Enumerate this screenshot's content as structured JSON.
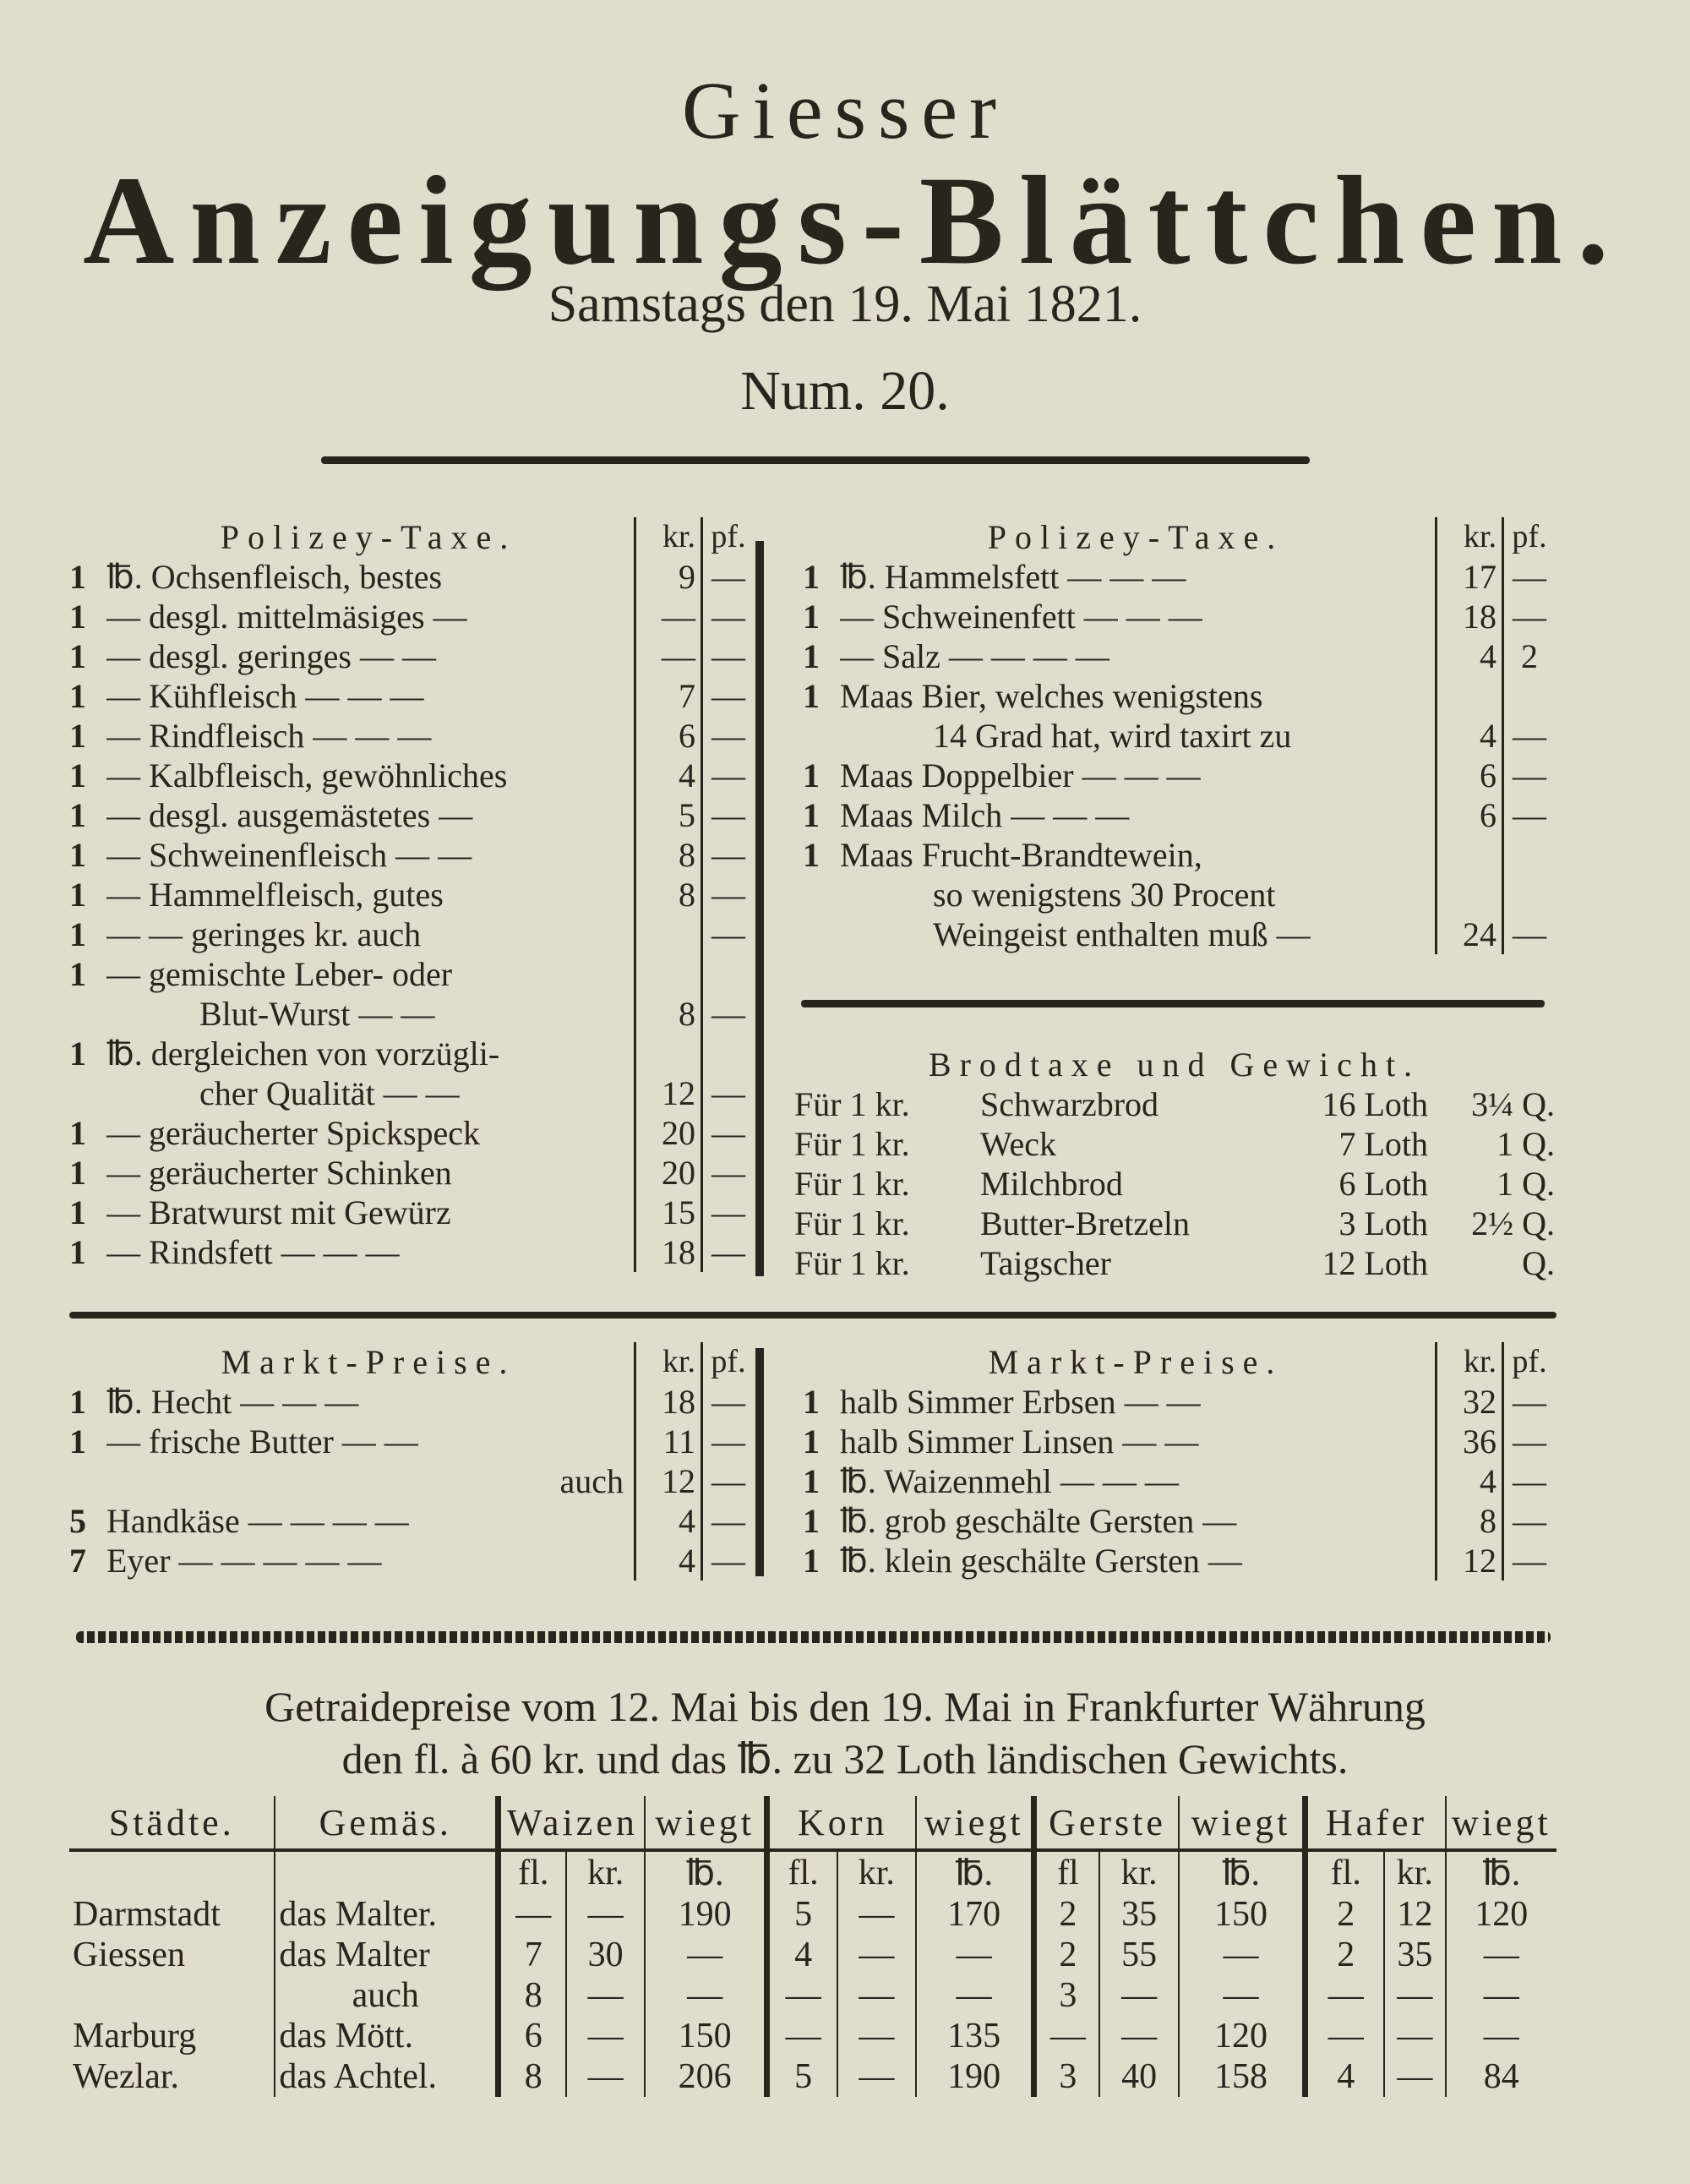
{
  "masthead": {
    "line1": "Giesser",
    "title": "Anzeigungs-Blättchen.",
    "date": "Samstags den 19. Mai 1821.",
    "number": "Num. 20."
  },
  "polizey_left": {
    "title": "Polizey-Taxe.",
    "kr": "kr.",
    "pf": "pf.",
    "rows": [
      {
        "qty": "1",
        "item": "℔. Ochsenfleisch, bestes",
        "kr": "9",
        "pf": "—"
      },
      {
        "qty": "1",
        "item": "— desgl. mittelmäsiges —",
        "kr": "—",
        "pf": "—"
      },
      {
        "qty": "1",
        "item": "— desgl. geringes — —",
        "kr": "—",
        "pf": "—"
      },
      {
        "qty": "1",
        "item": "— Kühfleisch — — —",
        "kr": "7",
        "pf": "—"
      },
      {
        "qty": "1",
        "item": "— Rindfleisch — — —",
        "kr": "6",
        "pf": "—"
      },
      {
        "qty": "1",
        "item": "— Kalbfleisch, gewöhnliches",
        "kr": "4",
        "pf": "—"
      },
      {
        "qty": "1",
        "item": "— desgl. ausgemästetes —",
        "kr": "5",
        "pf": "—"
      },
      {
        "qty": "1",
        "item": "— Schweinenfleisch — —",
        "kr": "8",
        "pf": "—"
      },
      {
        "qty": "1",
        "item": "— Hammelfleisch, gutes",
        "kr": "8",
        "pf": "—"
      },
      {
        "qty": "1",
        "item": "— — geringes kr. auch",
        "kr": "",
        "pf": "—"
      },
      {
        "qty": "1",
        "item": "— gemischte Leber- oder",
        "kr": "",
        "pf": ""
      },
      {
        "qty": "",
        "item": "Blut-Wurst — —",
        "kr": "8",
        "pf": "—",
        "cont": true
      },
      {
        "qty": "1",
        "item": "℔. dergleichen von vorzügli-",
        "kr": "",
        "pf": ""
      },
      {
        "qty": "",
        "item": "cher Qualität — —",
        "kr": "12",
        "pf": "—",
        "cont": true
      },
      {
        "qty": "1",
        "item": "— geräucherter Spickspeck",
        "kr": "20",
        "pf": "—"
      },
      {
        "qty": "1",
        "item": "— geräucherter Schinken",
        "kr": "20",
        "pf": "—"
      },
      {
        "qty": "1",
        "item": "— Bratwurst mit Gewürz",
        "kr": "15",
        "pf": "—"
      },
      {
        "qty": "1",
        "item": "— Rindsfett — — —",
        "kr": "18",
        "pf": "—"
      }
    ]
  },
  "polizey_right": {
    "title": "Polizey-Taxe.",
    "kr": "kr.",
    "pf": "pf.",
    "rows": [
      {
        "qty": "1",
        "item": "℔. Hammelsfett — — —",
        "kr": "17",
        "pf": "—"
      },
      {
        "qty": "1",
        "item": "— Schweinenfett — — —",
        "kr": "18",
        "pf": "—"
      },
      {
        "qty": "1",
        "item": "— Salz — — — —",
        "kr": "4",
        "pf": "2"
      },
      {
        "qty": "1",
        "item": "Maas Bier, welches wenigstens",
        "kr": "",
        "pf": ""
      },
      {
        "qty": "",
        "item": "14 Grad hat, wird taxirt zu",
        "kr": "4",
        "pf": "—",
        "cont": true
      },
      {
        "qty": "1",
        "item": "Maas Doppelbier — — —",
        "kr": "6",
        "pf": "—"
      },
      {
        "qty": "1",
        "item": "Maas Milch — — —",
        "kr": "6",
        "pf": "—"
      },
      {
        "qty": "1",
        "item": "Maas Frucht-Brandtewein,",
        "kr": "",
        "pf": ""
      },
      {
        "qty": "",
        "item": "so wenigstens 30 Procent",
        "kr": "",
        "pf": "",
        "cont": true
      },
      {
        "qty": "",
        "item": "Weingeist enthalten muß —",
        "kr": "24",
        "pf": "—",
        "cont": true
      }
    ]
  },
  "brodtaxe": {
    "title": "Brodtaxe und Gewicht.",
    "rows": [
      {
        "prefix": "Für 1 kr.",
        "item": "Schwarzbrod",
        "loth": "16 Loth",
        "q": "3¼ Q."
      },
      {
        "prefix": "Für 1 kr.",
        "item": "Weck",
        "loth": "7 Loth",
        "q": "1 Q."
      },
      {
        "prefix": "Für 1 kr.",
        "item": "Milchbrod",
        "loth": "6 Loth",
        "q": "1 Q."
      },
      {
        "prefix": "Für 1 kr.",
        "item": "Butter-Bretzeln",
        "loth": "3 Loth",
        "q": "2½ Q."
      },
      {
        "prefix": "Für 1 kr.",
        "item": "Taigscher",
        "loth": "12 Loth",
        "q": "Q."
      }
    ]
  },
  "markt_left": {
    "title": "Markt-Preise.",
    "kr": "kr.",
    "pf": "pf.",
    "rows": [
      {
        "qty": "1",
        "item": "℔. Hecht — — —",
        "kr": "18",
        "pf": "—"
      },
      {
        "qty": "1",
        "item": "— frische Butter — —",
        "kr": "11",
        "pf": "—"
      },
      {
        "qty": "",
        "item": "auch",
        "kr": "12",
        "pf": "—",
        "right": true
      },
      {
        "qty": "5",
        "item": "Handkäse — — — —",
        "kr": "4",
        "pf": "—"
      },
      {
        "qty": "7",
        "item": "Eyer — — — — —",
        "kr": "4",
        "pf": "—"
      }
    ]
  },
  "markt_right": {
    "title": "Markt-Preise.",
    "kr": "kr.",
    "pf": "pf.",
    "rows": [
      {
        "qty": "1",
        "item": "halb Simmer Erbsen — —",
        "kr": "32",
        "pf": "—"
      },
      {
        "qty": "1",
        "item": "halb Simmer Linsen — —",
        "kr": "36",
        "pf": "—"
      },
      {
        "qty": "1",
        "item": "℔. Waizenmehl — — —",
        "kr": "4",
        "pf": "—"
      },
      {
        "qty": "1",
        "item": "℔. grob geschälte Gersten —",
        "kr": "8",
        "pf": "—"
      },
      {
        "qty": "1",
        "item": "℔. klein geschälte Gersten —",
        "kr": "12",
        "pf": "—"
      }
    ]
  },
  "getraide": {
    "heading1": "Getraidepreise vom 12. Mai bis den 19. Mai in Frankfurter Währung",
    "heading2": "den fl. à 60 kr. und das ℔. zu 32 Loth ländischen Gewichts.",
    "headers": [
      "Städte.",
      "Gemäs.",
      "Waizen",
      "wiegt",
      "Korn",
      "wiegt",
      "Gerste",
      "wiegt",
      "Hafer",
      "wiegt"
    ],
    "subheaders": [
      "fl.",
      "kr.",
      "℔.",
      "fl.",
      "kr.",
      "℔.",
      "fl",
      "kr.",
      "℔.",
      "fl.",
      "kr.",
      "℔."
    ],
    "rows": [
      [
        "Darmstadt",
        "das Malter.",
        "—",
        "—",
        "190",
        "5",
        "—",
        "170",
        "2",
        "35",
        "150",
        "2",
        "12",
        "120"
      ],
      [
        "Giessen",
        "das Malter",
        "7",
        "30",
        "—",
        "4",
        "—",
        "—",
        "2",
        "55",
        "—",
        "2",
        "35",
        "—"
      ],
      [
        "",
        "auch",
        "8",
        "—",
        "—",
        "—",
        "—",
        "—",
        "3",
        "—",
        "—",
        "—",
        "—",
        "—"
      ],
      [
        "Marburg",
        "das Mött.",
        "6",
        "—",
        "150",
        "—",
        "—",
        "135",
        "—",
        "—",
        "120",
        "—",
        "—",
        "—"
      ],
      [
        "Wezlar.",
        "das Achtel.",
        "8",
        "—",
        "206",
        "5",
        "—",
        "190",
        "3",
        "40",
        "158",
        "4",
        "—",
        "84"
      ]
    ]
  }
}
